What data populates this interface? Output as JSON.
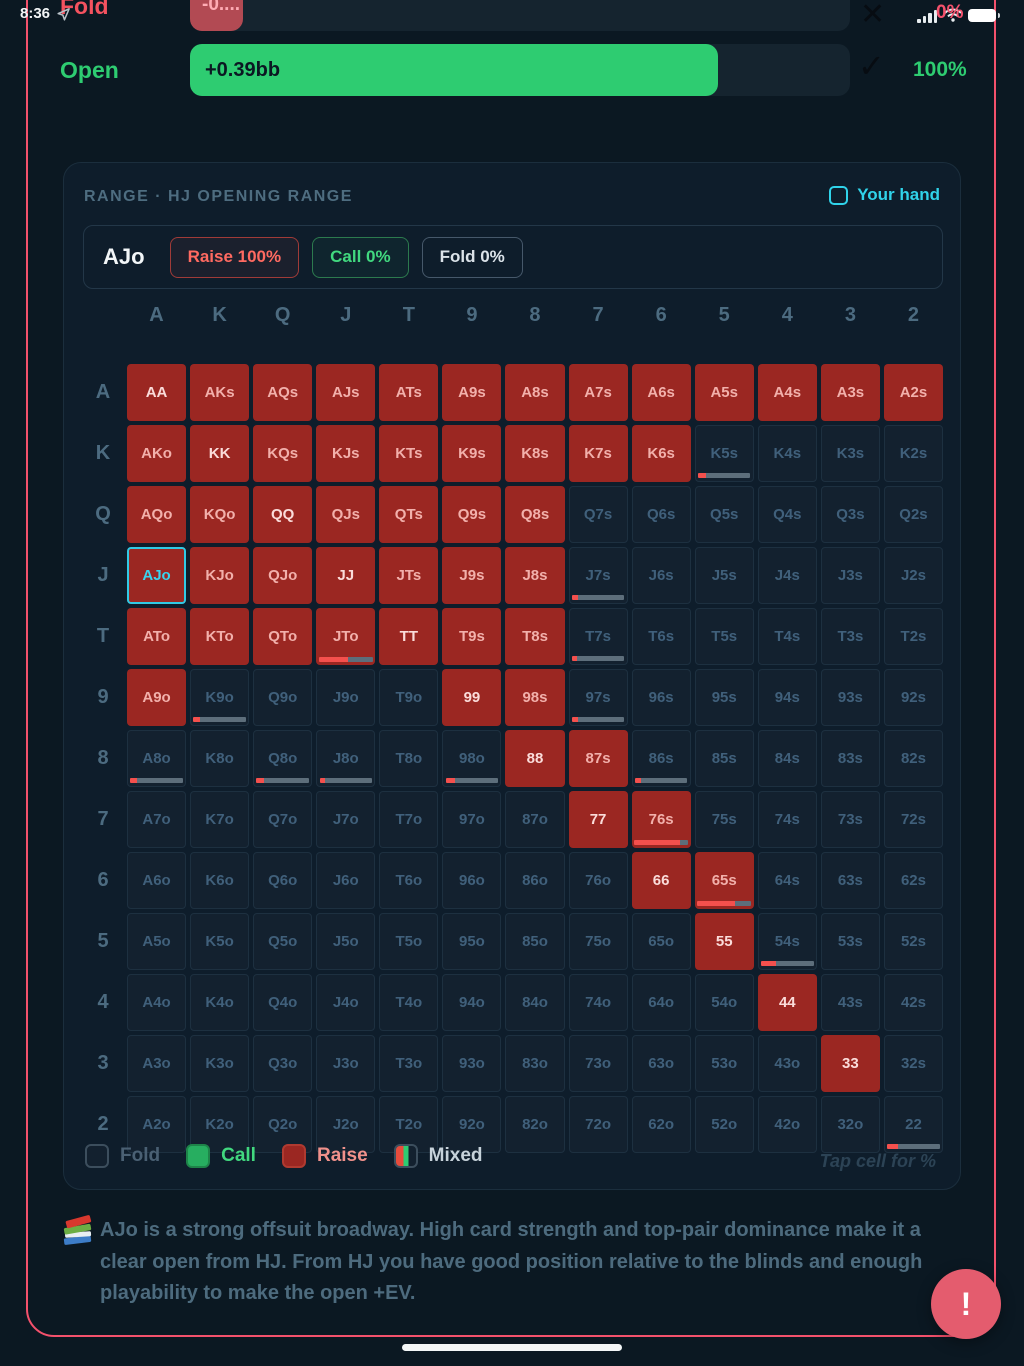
{
  "status_bar": {
    "time": "8:36"
  },
  "ev_rows": {
    "fold": {
      "label": "Fold",
      "bar_text": "-0....",
      "result_icon": "✕",
      "percent": "0%"
    },
    "open": {
      "label": "Open",
      "bar_text": "+0.39bb",
      "result_icon": "✓",
      "percent": "100%"
    }
  },
  "range_panel": {
    "title": "RANGE · HJ OPENING RANGE",
    "your_hand_label": "Your hand",
    "hand": {
      "name": "AJo",
      "actions": [
        {
          "label": "Raise 100%",
          "type": "raise"
        },
        {
          "label": "Call 0%",
          "type": "call"
        },
        {
          "label": "Fold 0%",
          "type": "fold"
        }
      ]
    },
    "grid": {
      "col_headers": [
        "A",
        "K",
        "Q",
        "J",
        "T",
        "9",
        "8",
        "7",
        "6",
        "5",
        "4",
        "3",
        "2"
      ],
      "row_headers": [
        "A",
        "K",
        "Q",
        "J",
        "T",
        "9",
        "8",
        "7",
        "6",
        "5",
        "4",
        "3",
        "2"
      ],
      "cells": [
        [
          {
            "t": "AA",
            "a": "r"
          },
          {
            "t": "AKs",
            "a": "r"
          },
          {
            "t": "AQs",
            "a": "r"
          },
          {
            "t": "AJs",
            "a": "r"
          },
          {
            "t": "ATs",
            "a": "r"
          },
          {
            "t": "A9s",
            "a": "r"
          },
          {
            "t": "A8s",
            "a": "r"
          },
          {
            "t": "A7s",
            "a": "r"
          },
          {
            "t": "A6s",
            "a": "r"
          },
          {
            "t": "A5s",
            "a": "r"
          },
          {
            "t": "A4s",
            "a": "r"
          },
          {
            "t": "A3s",
            "a": "r"
          },
          {
            "t": "A2s",
            "a": "r"
          }
        ],
        [
          {
            "t": "AKo",
            "a": "r"
          },
          {
            "t": "KK",
            "a": "r"
          },
          {
            "t": "KQs",
            "a": "r"
          },
          {
            "t": "KJs",
            "a": "r"
          },
          {
            "t": "KTs",
            "a": "r"
          },
          {
            "t": "K9s",
            "a": "r"
          },
          {
            "t": "K8s",
            "a": "r"
          },
          {
            "t": "K7s",
            "a": "r"
          },
          {
            "t": "K6s",
            "a": "r"
          },
          {
            "t": "K5s",
            "a": "f",
            "m": 0.15
          },
          {
            "t": "K4s",
            "a": "f"
          },
          {
            "t": "K3s",
            "a": "f"
          },
          {
            "t": "K2s",
            "a": "f"
          }
        ],
        [
          {
            "t": "AQo",
            "a": "r"
          },
          {
            "t": "KQo",
            "a": "r"
          },
          {
            "t": "QQ",
            "a": "r"
          },
          {
            "t": "QJs",
            "a": "r"
          },
          {
            "t": "QTs",
            "a": "r"
          },
          {
            "t": "Q9s",
            "a": "r"
          },
          {
            "t": "Q8s",
            "a": "r"
          },
          {
            "t": "Q7s",
            "a": "f"
          },
          {
            "t": "Q6s",
            "a": "f"
          },
          {
            "t": "Q5s",
            "a": "f"
          },
          {
            "t": "Q4s",
            "a": "f"
          },
          {
            "t": "Q3s",
            "a": "f"
          },
          {
            "t": "Q2s",
            "a": "f"
          }
        ],
        [
          {
            "t": "AJo",
            "a": "r",
            "hl": true
          },
          {
            "t": "KJo",
            "a": "r"
          },
          {
            "t": "QJo",
            "a": "r"
          },
          {
            "t": "JJ",
            "a": "r"
          },
          {
            "t": "JTs",
            "a": "r"
          },
          {
            "t": "J9s",
            "a": "r"
          },
          {
            "t": "J8s",
            "a": "r"
          },
          {
            "t": "J7s",
            "a": "f",
            "m": 0.12
          },
          {
            "t": "J6s",
            "a": "f"
          },
          {
            "t": "J5s",
            "a": "f"
          },
          {
            "t": "J4s",
            "a": "f"
          },
          {
            "t": "J3s",
            "a": "f"
          },
          {
            "t": "J2s",
            "a": "f"
          }
        ],
        [
          {
            "t": "ATo",
            "a": "r"
          },
          {
            "t": "KTo",
            "a": "r"
          },
          {
            "t": "QTo",
            "a": "r"
          },
          {
            "t": "JTo",
            "a": "r",
            "m": 0.55
          },
          {
            "t": "TT",
            "a": "r"
          },
          {
            "t": "T9s",
            "a": "r"
          },
          {
            "t": "T8s",
            "a": "r"
          },
          {
            "t": "T7s",
            "a": "f",
            "m": 0.1
          },
          {
            "t": "T6s",
            "a": "f"
          },
          {
            "t": "T5s",
            "a": "f"
          },
          {
            "t": "T4s",
            "a": "f"
          },
          {
            "t": "T3s",
            "a": "f"
          },
          {
            "t": "T2s",
            "a": "f"
          }
        ],
        [
          {
            "t": "A9o",
            "a": "r"
          },
          {
            "t": "K9o",
            "a": "f",
            "m": 0.12
          },
          {
            "t": "Q9o",
            "a": "f"
          },
          {
            "t": "J9o",
            "a": "f"
          },
          {
            "t": "T9o",
            "a": "f"
          },
          {
            "t": "99",
            "a": "r"
          },
          {
            "t": "98s",
            "a": "r"
          },
          {
            "t": "97s",
            "a": "f",
            "m": 0.12
          },
          {
            "t": "96s",
            "a": "f"
          },
          {
            "t": "95s",
            "a": "f"
          },
          {
            "t": "94s",
            "a": "f"
          },
          {
            "t": "93s",
            "a": "f"
          },
          {
            "t": "92s",
            "a": "f"
          }
        ],
        [
          {
            "t": "A8o",
            "a": "f",
            "m": 0.12
          },
          {
            "t": "K8o",
            "a": "f"
          },
          {
            "t": "Q8o",
            "a": "f",
            "m": 0.15
          },
          {
            "t": "J8o",
            "a": "f",
            "m": 0.1
          },
          {
            "t": "T8o",
            "a": "f"
          },
          {
            "t": "98o",
            "a": "f",
            "m": 0.18
          },
          {
            "t": "88",
            "a": "r"
          },
          {
            "t": "87s",
            "a": "r"
          },
          {
            "t": "86s",
            "a": "f",
            "m": 0.12
          },
          {
            "t": "85s",
            "a": "f"
          },
          {
            "t": "84s",
            "a": "f"
          },
          {
            "t": "83s",
            "a": "f"
          },
          {
            "t": "82s",
            "a": "f"
          }
        ],
        [
          {
            "t": "A7o",
            "a": "f"
          },
          {
            "t": "K7o",
            "a": "f"
          },
          {
            "t": "Q7o",
            "a": "f"
          },
          {
            "t": "J7o",
            "a": "f"
          },
          {
            "t": "T7o",
            "a": "f"
          },
          {
            "t": "97o",
            "a": "f"
          },
          {
            "t": "87o",
            "a": "f"
          },
          {
            "t": "77",
            "a": "r"
          },
          {
            "t": "76s",
            "a": "r",
            "m": 0.85
          },
          {
            "t": "75s",
            "a": "f"
          },
          {
            "t": "74s",
            "a": "f"
          },
          {
            "t": "73s",
            "a": "f"
          },
          {
            "t": "72s",
            "a": "f"
          }
        ],
        [
          {
            "t": "A6o",
            "a": "f"
          },
          {
            "t": "K6o",
            "a": "f"
          },
          {
            "t": "Q6o",
            "a": "f"
          },
          {
            "t": "J6o",
            "a": "f"
          },
          {
            "t": "T6o",
            "a": "f"
          },
          {
            "t": "96o",
            "a": "f"
          },
          {
            "t": "86o",
            "a": "f"
          },
          {
            "t": "76o",
            "a": "f"
          },
          {
            "t": "66",
            "a": "r"
          },
          {
            "t": "65s",
            "a": "r",
            "m": 0.7
          },
          {
            "t": "64s",
            "a": "f"
          },
          {
            "t": "63s",
            "a": "f"
          },
          {
            "t": "62s",
            "a": "f"
          }
        ],
        [
          {
            "t": "A5o",
            "a": "f"
          },
          {
            "t": "K5o",
            "a": "f"
          },
          {
            "t": "Q5o",
            "a": "f"
          },
          {
            "t": "J5o",
            "a": "f"
          },
          {
            "t": "T5o",
            "a": "f"
          },
          {
            "t": "95o",
            "a": "f"
          },
          {
            "t": "85o",
            "a": "f"
          },
          {
            "t": "75o",
            "a": "f"
          },
          {
            "t": "65o",
            "a": "f"
          },
          {
            "t": "55",
            "a": "r"
          },
          {
            "t": "54s",
            "a": "f",
            "m": 0.28
          },
          {
            "t": "53s",
            "a": "f"
          },
          {
            "t": "52s",
            "a": "f"
          }
        ],
        [
          {
            "t": "A4o",
            "a": "f"
          },
          {
            "t": "K4o",
            "a": "f"
          },
          {
            "t": "Q4o",
            "a": "f"
          },
          {
            "t": "J4o",
            "a": "f"
          },
          {
            "t": "T4o",
            "a": "f"
          },
          {
            "t": "94o",
            "a": "f"
          },
          {
            "t": "84o",
            "a": "f"
          },
          {
            "t": "74o",
            "a": "f"
          },
          {
            "t": "64o",
            "a": "f"
          },
          {
            "t": "54o",
            "a": "f"
          },
          {
            "t": "44",
            "a": "r"
          },
          {
            "t": "43s",
            "a": "f"
          },
          {
            "t": "42s",
            "a": "f"
          }
        ],
        [
          {
            "t": "A3o",
            "a": "f"
          },
          {
            "t": "K3o",
            "a": "f"
          },
          {
            "t": "Q3o",
            "a": "f"
          },
          {
            "t": "J3o",
            "a": "f"
          },
          {
            "t": "T3o",
            "a": "f"
          },
          {
            "t": "93o",
            "a": "f"
          },
          {
            "t": "83o",
            "a": "f"
          },
          {
            "t": "73o",
            "a": "f"
          },
          {
            "t": "63o",
            "a": "f"
          },
          {
            "t": "53o",
            "a": "f"
          },
          {
            "t": "43o",
            "a": "f"
          },
          {
            "t": "33",
            "a": "r"
          },
          {
            "t": "32s",
            "a": "f"
          }
        ],
        [
          {
            "t": "A2o",
            "a": "f"
          },
          {
            "t": "K2o",
            "a": "f"
          },
          {
            "t": "Q2o",
            "a": "f"
          },
          {
            "t": "J2o",
            "a": "f"
          },
          {
            "t": "T2o",
            "a": "f"
          },
          {
            "t": "92o",
            "a": "f"
          },
          {
            "t": "82o",
            "a": "f"
          },
          {
            "t": "72o",
            "a": "f"
          },
          {
            "t": "62o",
            "a": "f"
          },
          {
            "t": "52o",
            "a": "f"
          },
          {
            "t": "42o",
            "a": "f"
          },
          {
            "t": "32o",
            "a": "f"
          },
          {
            "t": "22",
            "a": "f",
            "m": 0.2
          }
        ]
      ]
    },
    "legend": [
      {
        "label": "Fold",
        "type": "fold"
      },
      {
        "label": "Call",
        "type": "call"
      },
      {
        "label": "Raise",
        "type": "raise"
      },
      {
        "label": "Mixed",
        "type": "mixed"
      }
    ],
    "tap_hint": "Tap cell for %"
  },
  "explanation": {
    "icon": "books-icon",
    "text": "AJo is a strong offsuit broadway. High card strength and top-pair dominance make it a clear open from HJ. From HJ you have good position relative to the blinds and enough playability to make the open +EV."
  },
  "fab": {
    "label": "!"
  },
  "colors": {
    "accent_cyan": "#30d3ea",
    "raise_red": "#9b2722",
    "call_green": "#2ecc71",
    "fold_navy": "#13212f",
    "mix_red": "#f4504d",
    "border_pink": "#f4516c"
  }
}
